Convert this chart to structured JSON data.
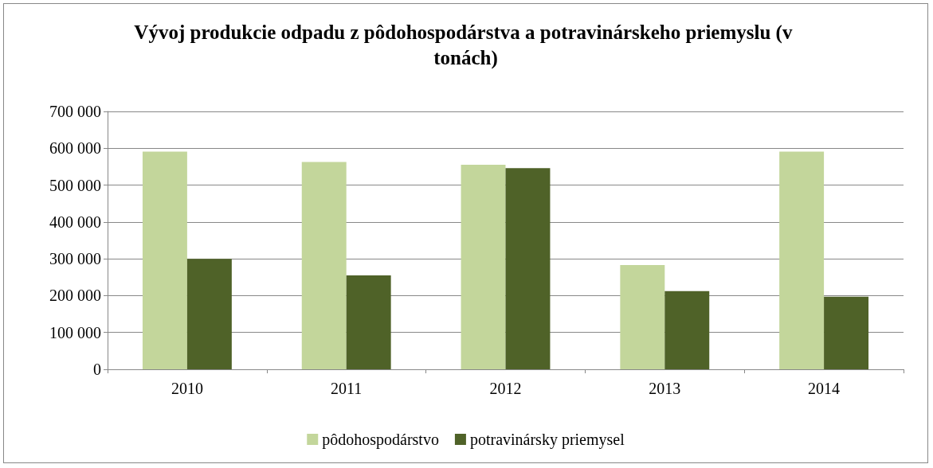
{
  "chart_data": {
    "type": "bar",
    "title": "Vývoj produkcie odpadu z pôdohospodárstva a potravinárskeho priemyslu (v tonách)",
    "categories": [
      "2010",
      "2011",
      "2012",
      "2013",
      "2014"
    ],
    "series": [
      {
        "name": "pôdohospodárstvo",
        "color": "#c3d69b",
        "values": [
          591000,
          563000,
          555000,
          283000,
          591000
        ]
      },
      {
        "name": "potravinársky priemysel",
        "color": "#4f6228",
        "values": [
          300000,
          255000,
          546000,
          212000,
          197000
        ]
      }
    ],
    "ylim": [
      0,
      700000
    ],
    "yticks": [
      {
        "value": 0,
        "label": "0"
      },
      {
        "value": 100000,
        "label": "100 000"
      },
      {
        "value": 200000,
        "label": "200 000"
      },
      {
        "value": 300000,
        "label": "300 000"
      },
      {
        "value": 400000,
        "label": "400 000"
      },
      {
        "value": 500000,
        "label": "500 000"
      },
      {
        "value": 600000,
        "label": "600 000"
      },
      {
        "value": 700000,
        "label": "700 000"
      }
    ],
    "grid": "y",
    "legend": "bottom"
  }
}
